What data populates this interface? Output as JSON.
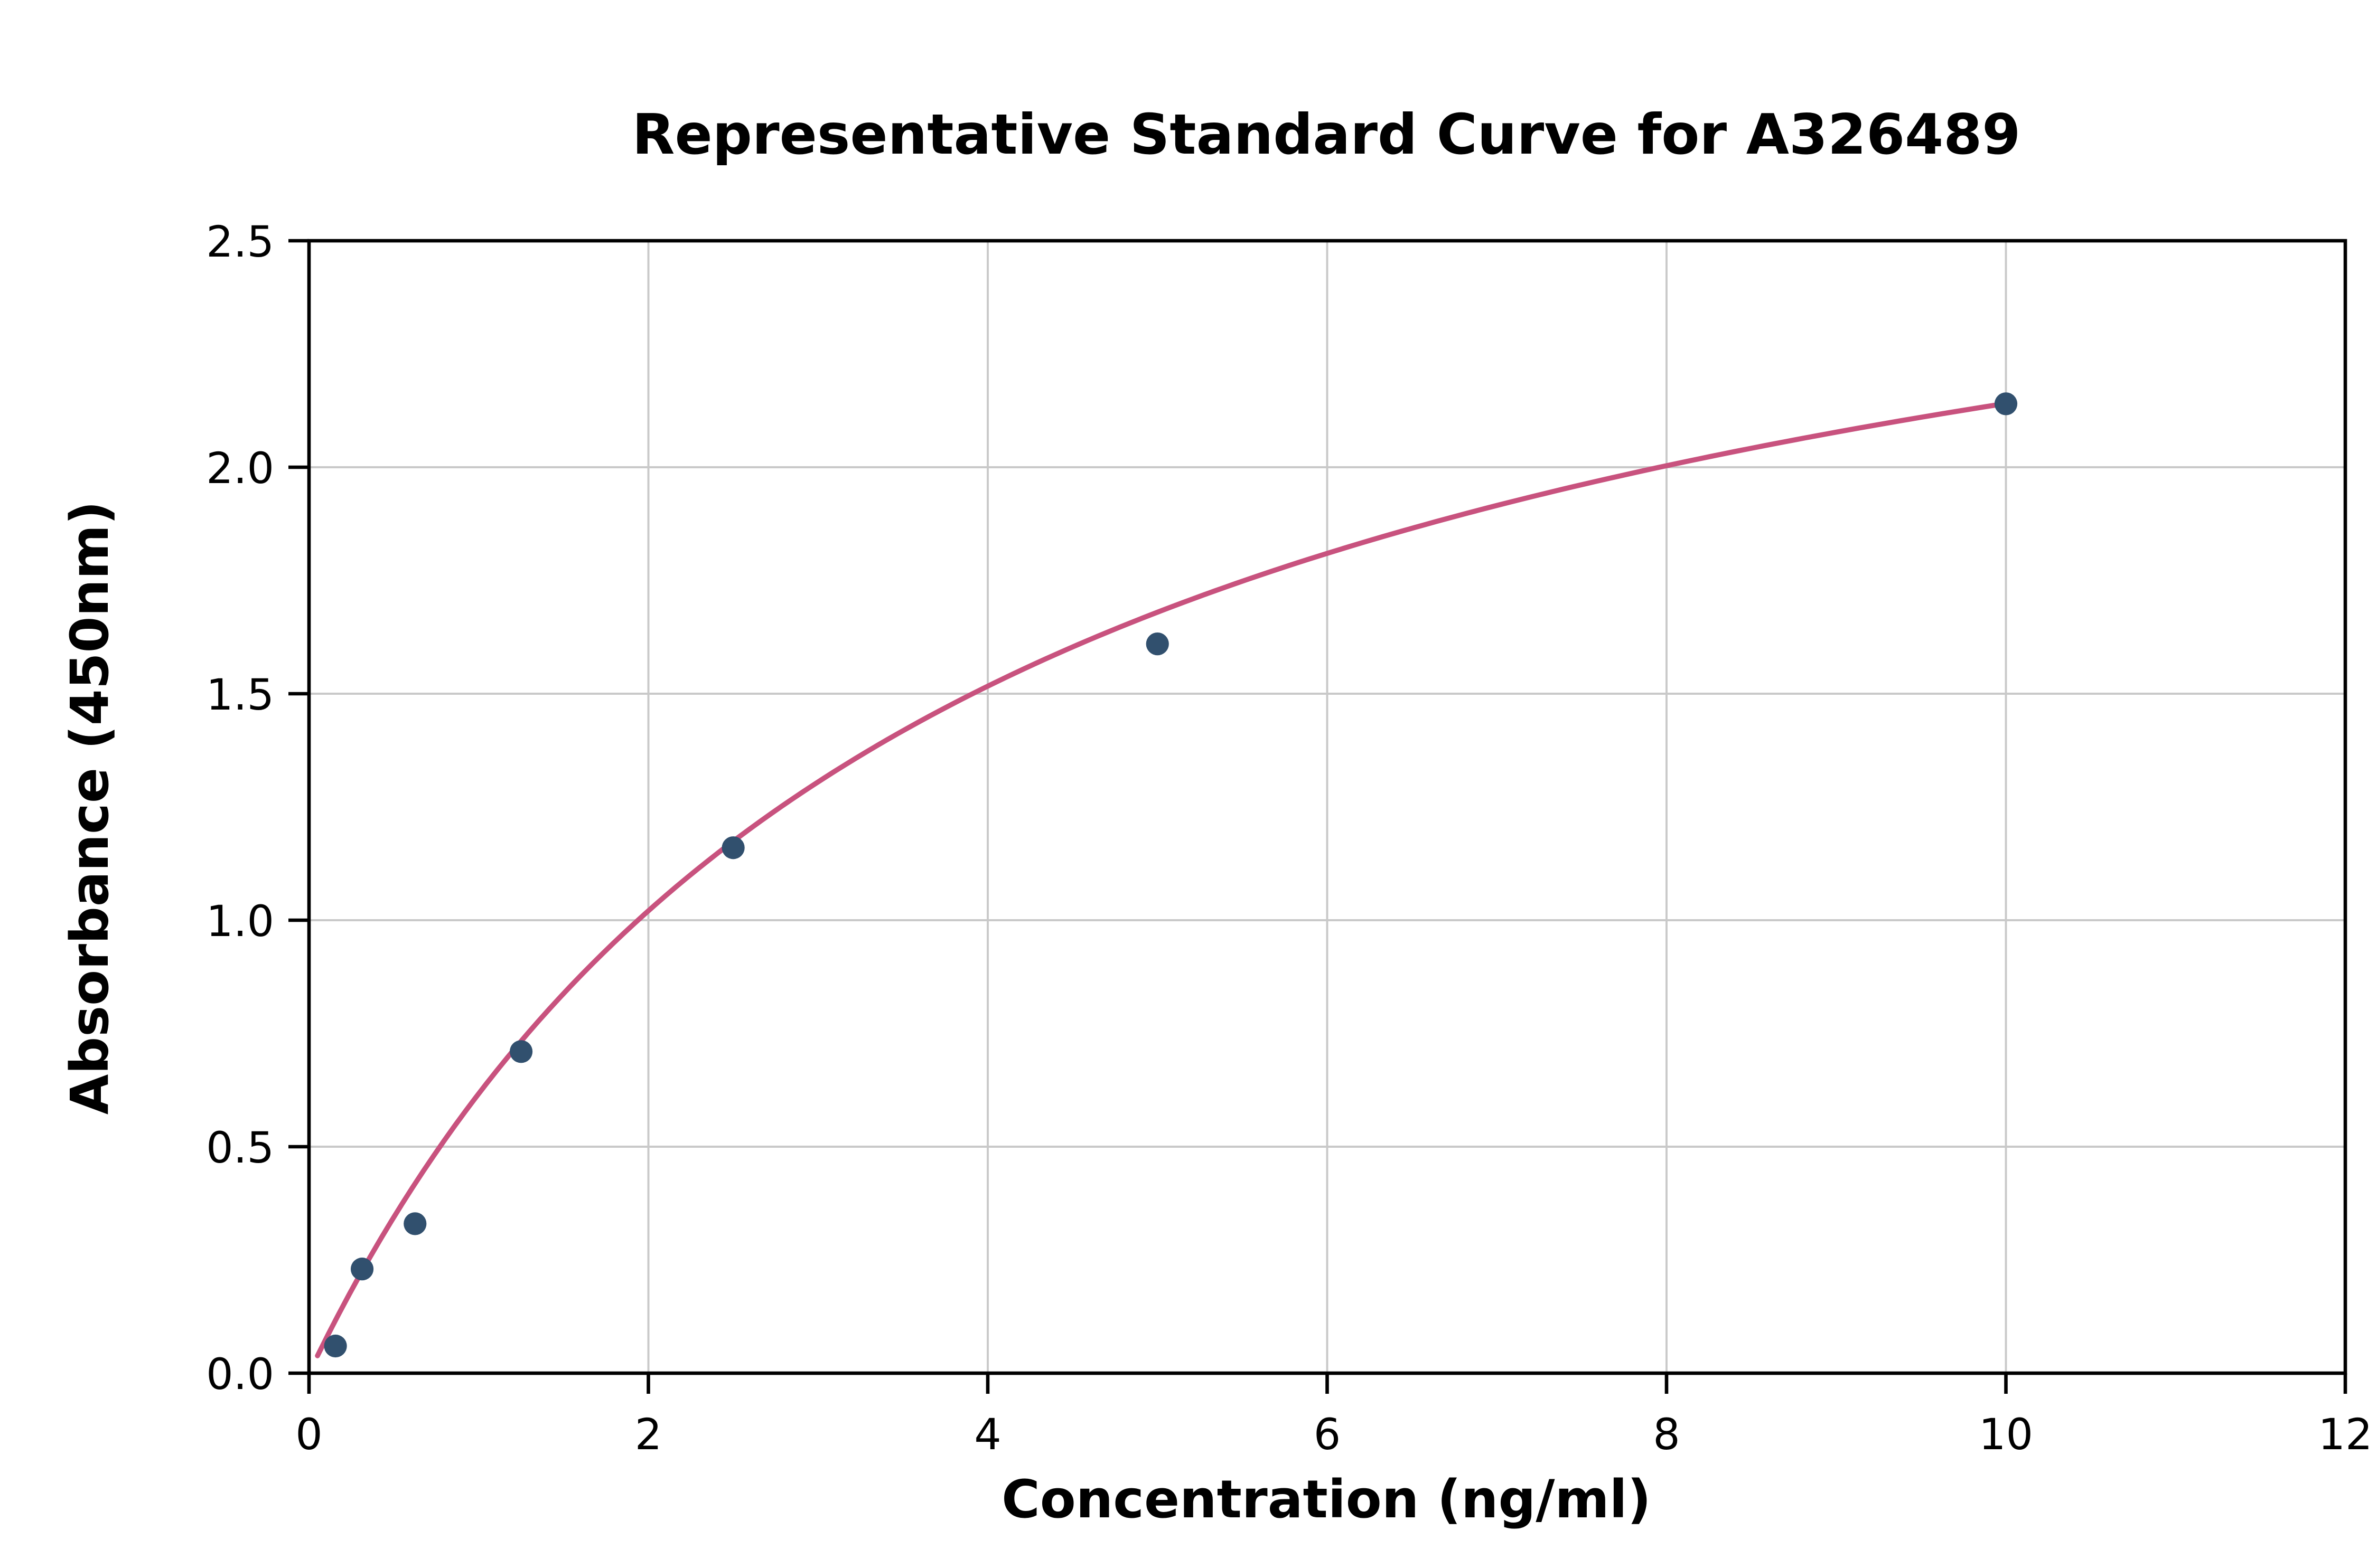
{
  "chart_data": {
    "type": "scatter",
    "title": "Representative Standard Curve for A326489",
    "xlabel": "Concentration (ng/ml)",
    "ylabel": "Absorbance (450nm)",
    "xlim": [
      0,
      12
    ],
    "ylim": [
      0,
      2.5
    ],
    "xticks": [
      0,
      2,
      4,
      6,
      8,
      10,
      12
    ],
    "xtick_labels": [
      "0",
      "2",
      "4",
      "6",
      "8",
      "10",
      "12"
    ],
    "yticks": [
      0,
      0.5,
      1.0,
      1.5,
      2.0,
      2.5
    ],
    "ytick_labels": [
      "0.0",
      "0.5",
      "1.0",
      "1.5",
      "2.0",
      "2.5"
    ],
    "grid": true,
    "legend": "none",
    "points": {
      "x": [
        0.156,
        0.313,
        0.625,
        1.25,
        2.5,
        5,
        10
      ],
      "y": [
        0.06,
        0.23,
        0.33,
        0.71,
        1.16,
        1.61,
        2.14
      ]
    },
    "fit_curve": {
      "model": "michaelis_menten",
      "vmax": 2.95,
      "km": 3.78,
      "x_start": 0.05,
      "x_end": 10
    },
    "colors": {
      "points": "#31506e",
      "curve": "#c8527e",
      "grid": "#c9c9c9",
      "axes": "#000000",
      "background": "#ffffff"
    }
  }
}
